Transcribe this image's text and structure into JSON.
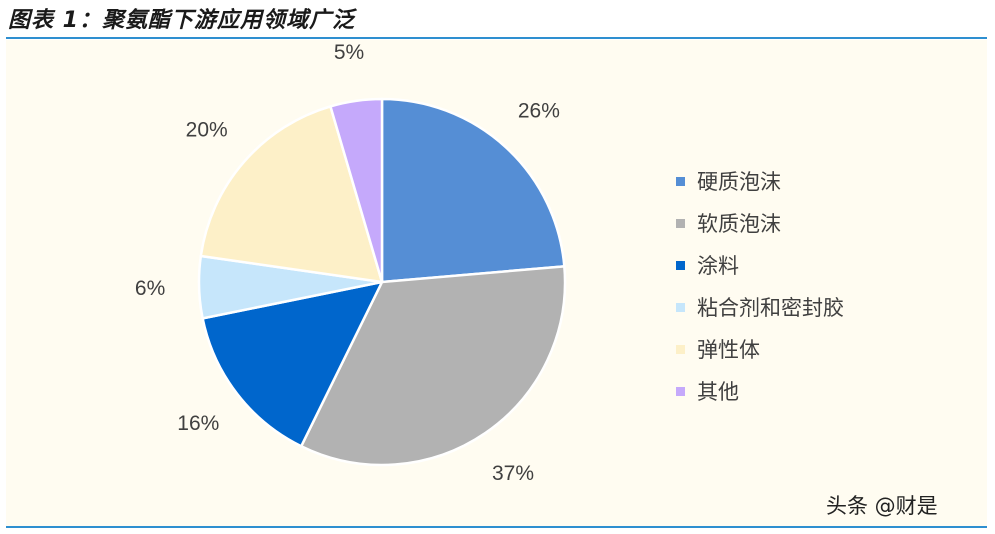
{
  "title": "图表 1：聚氨酯下游应用领域广泛",
  "watermark": "头条 @财是",
  "colors": {
    "rule": "#2e8fd0",
    "panel_bg": "#fffcf1"
  },
  "chart_data": {
    "type": "pie",
    "title": "",
    "legend_position": "right",
    "start_angle_deg": 0,
    "direction": "clockwise",
    "slices": [
      {
        "label": "硬质泡沫",
        "value": 26,
        "display": "26%",
        "color": "#558ed5"
      },
      {
        "label": "软质泡沫",
        "value": 37,
        "display": "37%",
        "color": "#b2b2b2"
      },
      {
        "label": "涂料",
        "value": 16,
        "display": "16%",
        "color": "#0066cc"
      },
      {
        "label": "粘合剂和密封胶",
        "value": 6,
        "display": "6%",
        "color": "#c6e6fb"
      },
      {
        "label": "弹性体",
        "value": 20,
        "display": "20%",
        "color": "#fdf0c8"
      },
      {
        "label": "其他",
        "value": 5,
        "display": "5%",
        "color": "#c5a9fb"
      }
    ]
  }
}
